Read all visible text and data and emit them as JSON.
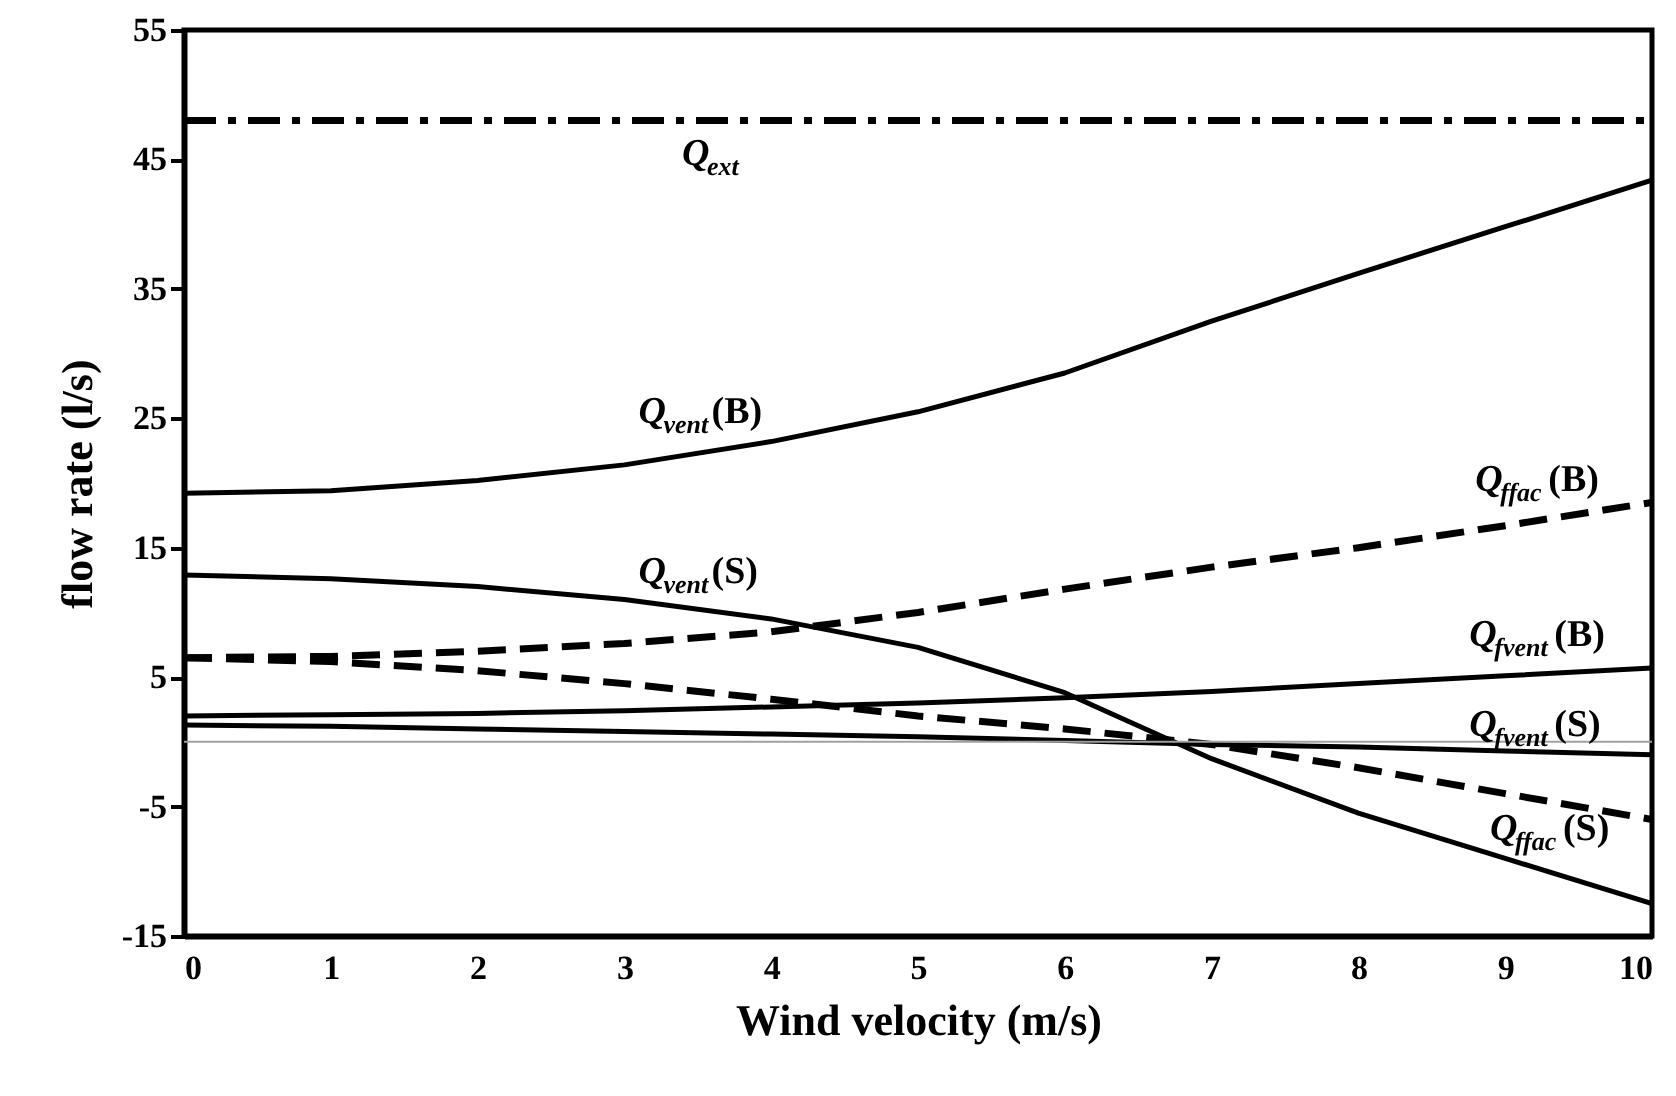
{
  "chart_data": {
    "type": "line",
    "xlabel": "Wind velocity (m/s)",
    "ylabel": "flow rate (l/s)",
    "x": [
      0,
      1,
      2,
      3,
      4,
      5,
      6,
      7,
      8,
      9,
      10
    ],
    "xlim": [
      0,
      10
    ],
    "xticks": [
      0,
      1,
      2,
      3,
      4,
      5,
      6,
      7,
      8,
      9,
      10
    ],
    "ylim": [
      -15,
      55
    ],
    "yticks": [
      -15,
      -5,
      5,
      15,
      25,
      35,
      45,
      55
    ],
    "grid": false,
    "marker": "none",
    "ref_lines": [
      {
        "axis": "y",
        "value": 0,
        "color": "#a0a0a0",
        "line_style": "solid"
      }
    ],
    "series": [
      {
        "name": "Q$_{ext}$",
        "color": "#000000",
        "line_style": "dashdot",
        "values": [
          48,
          48,
          48,
          48,
          48,
          48,
          48,
          48,
          48,
          48,
          48
        ]
      },
      {
        "name": "Q$_{vent}$(B)",
        "color": "#000000",
        "line_style": "solid",
        "values": [
          19.2,
          19.4,
          20.2,
          21.4,
          23.2,
          25.5,
          28.5,
          32.5,
          36.2,
          39.8,
          43.4
        ]
      },
      {
        "name": "Q$_{vent}$(S)",
        "color": "#000000",
        "line_style": "solid",
        "values": [
          12.9,
          12.6,
          12.0,
          11.0,
          9.5,
          7.3,
          3.8,
          -1.3,
          -5.5,
          -9,
          -12.5
        ]
      },
      {
        "name": "Q$_{ffac}$(B)",
        "color": "#000000",
        "line_style": "dashed",
        "values": [
          6.5,
          6.6,
          7,
          7.6,
          8.5,
          10,
          11.8,
          13.5,
          15,
          16.7,
          18.5
        ]
      },
      {
        "name": "Q$_{ffac}$(S)",
        "color": "#000000",
        "line_style": "dashed",
        "values": [
          6.5,
          6.2,
          5.5,
          4.5,
          3.3,
          2,
          1,
          -0.2,
          -2,
          -4,
          -6
        ]
      },
      {
        "name": "Q$_{fvent}$(B)",
        "color": "#000000",
        "line_style": "solid",
        "values": [
          2,
          2.1,
          2.2,
          2.4,
          2.7,
          3,
          3.4,
          3.9,
          4.5,
          5.1,
          5.7
        ]
      },
      {
        "name": "Q$_{fvent}$(S)",
        "color": "#000000",
        "line_style": "solid",
        "values": [
          1.3,
          1.2,
          1,
          0.8,
          0.6,
          0.4,
          0.1,
          -0.2,
          -0.4,
          -0.7,
          -1
        ]
      }
    ]
  }
}
